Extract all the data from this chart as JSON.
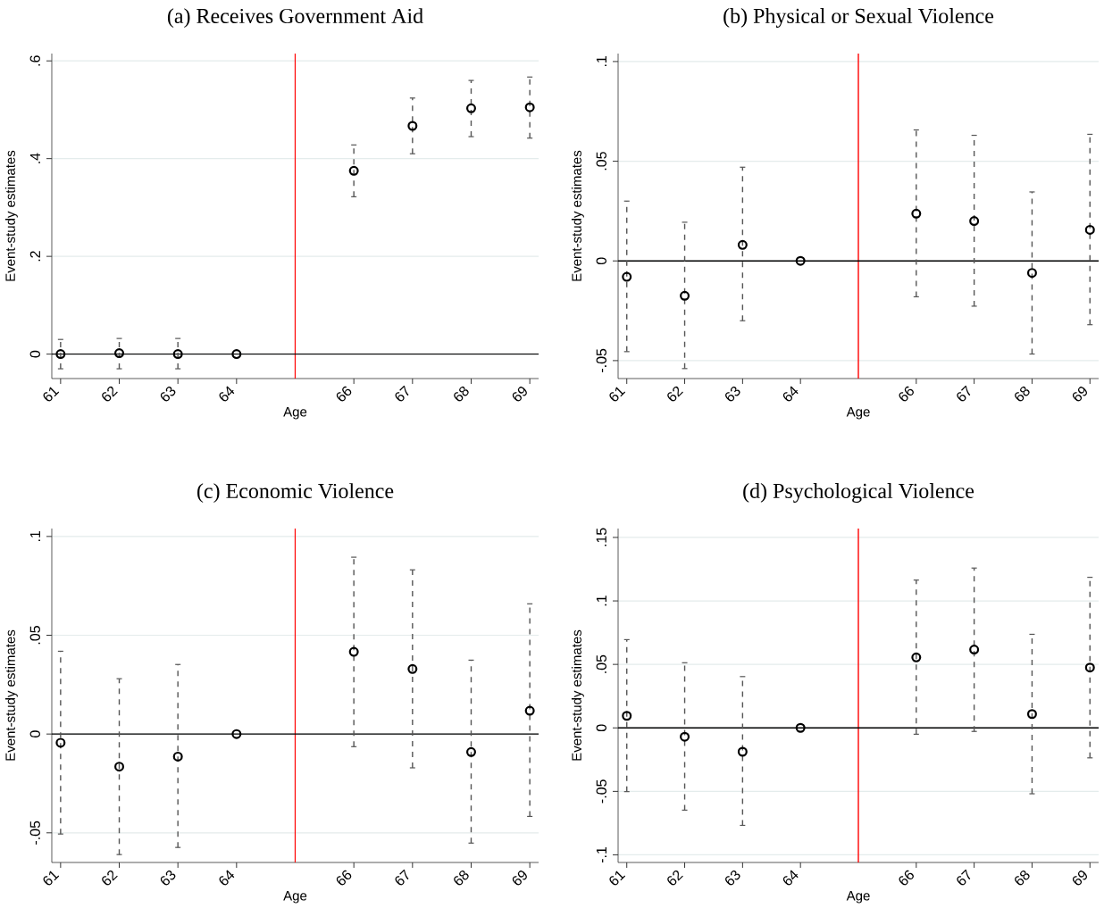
{
  "chart_data": [
    {
      "type": "scatter",
      "title": "(a) Receives Government Aid",
      "xlabel": "Age",
      "ylabel": "Event-study estimates",
      "x": [
        61,
        62,
        63,
        64,
        66,
        67,
        68,
        69
      ],
      "values": [
        0,
        0.002,
        0,
        0,
        0.375,
        0.467,
        0.503,
        0.505
      ],
      "errors": [
        [
          -0.03,
          0.03
        ],
        [
          -0.03,
          0.032
        ],
        [
          -0.03,
          0.032
        ],
        null,
        [
          0.322,
          0.428
        ],
        [
          0.41,
          0.524
        ],
        [
          0.445,
          0.56
        ],
        [
          0.442,
          0.567
        ]
      ],
      "color": "#000000",
      "marker": "circle",
      "xlim": [
        60.85,
        69.15
      ],
      "xticks": [
        61,
        62,
        63,
        64,
        66,
        67,
        68,
        69
      ],
      "ylim": [
        -0.05,
        0.615
      ],
      "yticks": [
        0,
        {
          "value": 0.2,
          "label": ".2"
        },
        {
          "value": 0.4,
          "label": ".4"
        },
        {
          "value": 0.6,
          "label": ".6"
        }
      ],
      "grid": "y",
      "ref_lines": [
        {
          "axis": "x",
          "value": 65,
          "color": "#ff0000"
        },
        {
          "axis": "y",
          "value": 0,
          "color": "#000000"
        }
      ]
    },
    {
      "type": "scatter",
      "title": "(b) Physical or Sexual Violence",
      "xlabel": "Age",
      "ylabel": "Event-study estimates",
      "x": [
        61,
        62,
        63,
        64,
        66,
        67,
        68,
        69
      ],
      "values": [
        -0.008,
        -0.0175,
        0.008,
        0,
        0.0237,
        0.02,
        -0.006,
        0.0156
      ],
      "errors": [
        [
          -0.0455,
          0.03
        ],
        [
          -0.054,
          0.0194
        ],
        [
          -0.03,
          0.047
        ],
        null,
        [
          -0.018,
          0.0657
        ],
        [
          -0.0227,
          0.063
        ],
        [
          -0.0467,
          0.0346
        ],
        [
          -0.032,
          0.0635
        ]
      ],
      "color": "#000000",
      "marker": "circle",
      "xlim": [
        60.85,
        69.15
      ],
      "xticks": [
        61,
        62,
        63,
        64,
        66,
        67,
        68,
        69
      ],
      "ylim": [
        -0.059,
        0.104
      ],
      "yticks": [
        {
          "value": -0.05,
          "label": "-.05"
        },
        0,
        {
          "value": 0.05,
          "label": ".05"
        },
        {
          "value": 0.1,
          "label": ".1"
        }
      ],
      "grid": "y",
      "ref_lines": [
        {
          "axis": "x",
          "value": 65,
          "color": "#ff0000"
        },
        {
          "axis": "y",
          "value": 0,
          "color": "#000000"
        }
      ]
    },
    {
      "type": "scatter",
      "title": "(c) Economic Violence",
      "xlabel": "Age",
      "ylabel": "Event-study estimates",
      "x": [
        61,
        62,
        63,
        64,
        66,
        67,
        68,
        69
      ],
      "values": [
        -0.0044,
        -0.0165,
        -0.0114,
        0,
        0.0416,
        0.0329,
        -0.0091,
        0.0118
      ],
      "errors": [
        [
          -0.0506,
          0.0419
        ],
        [
          -0.061,
          0.028
        ],
        [
          -0.0574,
          0.0352
        ],
        null,
        [
          -0.0064,
          0.0895
        ],
        [
          -0.0171,
          0.0831
        ],
        [
          -0.0552,
          0.0374
        ],
        [
          -0.0417,
          0.0659
        ]
      ],
      "color": "#000000",
      "marker": "circle",
      "xlim": [
        60.85,
        69.15
      ],
      "xticks": [
        61,
        62,
        63,
        64,
        66,
        67,
        68,
        69
      ],
      "ylim": [
        -0.065,
        0.104
      ],
      "yticks": [
        {
          "value": -0.05,
          "label": "-.05"
        },
        0,
        {
          "value": 0.05,
          "label": ".05"
        },
        {
          "value": 0.1,
          "label": ".1"
        }
      ],
      "grid": "y",
      "ref_lines": [
        {
          "axis": "x",
          "value": 65,
          "color": "#ff0000"
        },
        {
          "axis": "y",
          "value": 0,
          "color": "#000000"
        }
      ]
    },
    {
      "type": "scatter",
      "title": "(d) Psychological Violence",
      "xlabel": "Age",
      "ylabel": "Event-study estimates",
      "x": [
        61,
        62,
        63,
        64,
        66,
        67,
        68,
        69
      ],
      "values": [
        0.0095,
        -0.007,
        -0.0188,
        0,
        0.0555,
        0.0617,
        0.0109,
        0.0475
      ],
      "errors": [
        [
          -0.0502,
          0.0695
        ],
        [
          -0.0648,
          0.0513
        ],
        [
          -0.0768,
          0.0404
        ],
        null,
        [
          -0.005,
          0.1164
        ],
        [
          -0.0028,
          0.1259
        ],
        [
          -0.0519,
          0.0737
        ],
        [
          -0.0236,
          0.1186
        ]
      ],
      "color": "#000000",
      "marker": "circle",
      "xlim": [
        60.85,
        69.15
      ],
      "xticks": [
        61,
        62,
        63,
        64,
        66,
        67,
        68,
        69
      ],
      "ylim": [
        -0.106,
        0.157
      ],
      "yticks": [
        {
          "value": -0.1,
          "label": "-.1"
        },
        {
          "value": -0.05,
          "label": "-.05"
        },
        0,
        {
          "value": 0.05,
          "label": ".05"
        },
        {
          "value": 0.1,
          "label": ".1"
        },
        {
          "value": 0.15,
          "label": ".15"
        }
      ],
      "grid": "y",
      "ref_lines": [
        {
          "axis": "x",
          "value": 65,
          "color": "#ff0000"
        },
        {
          "axis": "y",
          "value": 0,
          "color": "#000000"
        }
      ]
    }
  ]
}
